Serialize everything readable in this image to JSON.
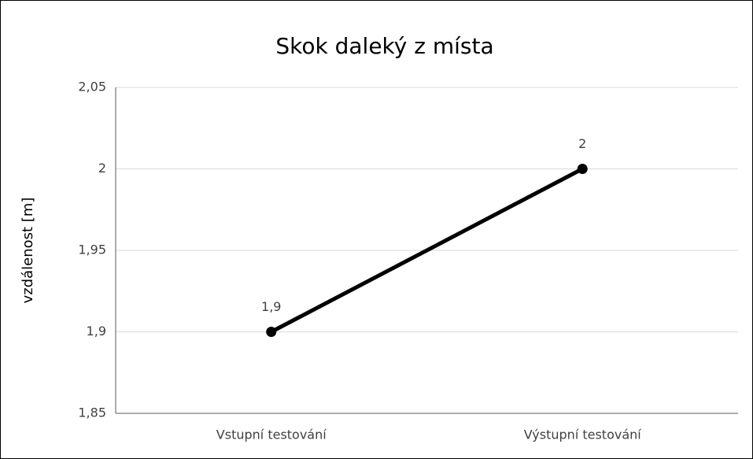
{
  "chart_data": {
    "type": "line",
    "title": "Skok daleký z místa",
    "y_label": "vzdálenost [m]",
    "categories": [
      "Vstupní testování",
      "Výstupní testování"
    ],
    "values": [
      1.9,
      2
    ],
    "value_labels": [
      "1,9",
      "2"
    ],
    "color": "#000000",
    "ylim": [
      1.85,
      2.05
    ],
    "yticks": [
      {
        "value": 1.85,
        "label": "1,85"
      },
      {
        "value": 1.9,
        "label": "1,9"
      },
      {
        "value": 1.95,
        "label": "1,95"
      },
      2,
      {
        "value": 2.05,
        "label": "2,05"
      }
    ],
    "grid": true
  }
}
